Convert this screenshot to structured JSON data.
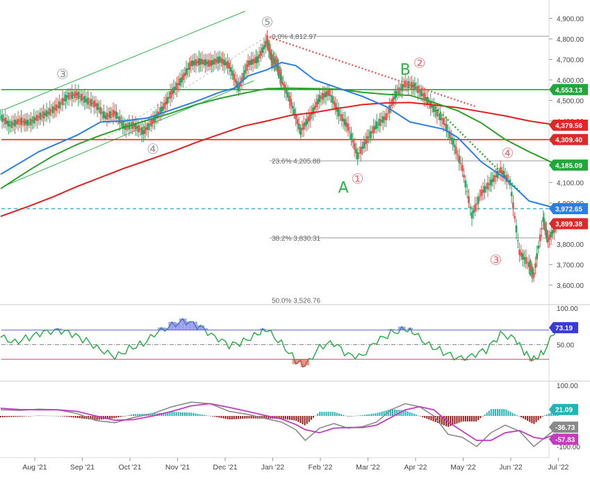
{
  "chart_data": {
    "type": "line",
    "ohlc_note": "daily candlestick price chart with moving averages, RSI and MACD panes",
    "price_axis": {
      "ticks": [
        "4,900.00",
        "4,800.00",
        "4,700.00",
        "4,600.00",
        "4,500.00",
        "4,400.00",
        "4,300.00",
        "4,200.00",
        "4,100.00",
        "4,000.00",
        "3,900.00",
        "3,800.00",
        "3,700.00",
        "3,600.00"
      ],
      "ylim": [
        3500,
        4950
      ]
    },
    "x_ticks": [
      "Aug '21",
      "Sep '21",
      "Oct '21",
      "Nov '21",
      "Dec '21",
      "Jan '22",
      "Feb '22",
      "Mar '22",
      "Apr '22",
      "May '22",
      "Jun '22",
      "Jul '22"
    ],
    "price_badges": [
      {
        "text": "4,553.13",
        "value": 4553.13,
        "color": "#1fa83a"
      },
      {
        "text": "4,379.56",
        "value": 4379.56,
        "color": "#e02828"
      },
      {
        "text": "4,309.40",
        "value": 4309.4,
        "color": "#e02828"
      },
      {
        "text": "4,185.09",
        "value": 4185.09,
        "color": "#1fa83a"
      },
      {
        "text": "3,972.65",
        "value": 3972.65,
        "color": "#2b7de9"
      },
      {
        "text": "3,899.38",
        "value": 3899.38,
        "color": "#e02828"
      }
    ],
    "fib_levels": [
      {
        "text": "0.0% 4,812.97",
        "value": 4812.97
      },
      {
        "text": "23.6% 4,205.88",
        "value": 4205.88
      },
      {
        "text": "38.2% 3,830.31",
        "value": 3830.31
      },
      {
        "text": "50.0% 3,526.76",
        "value": 3526.76
      }
    ],
    "horizontal_lines": [
      {
        "value": 4553.13,
        "color": "#1fa83a"
      },
      {
        "value": 4309.4,
        "color": "#e02828"
      },
      {
        "value": 3972.65,
        "color": "#1aa6c8",
        "style": "dashed"
      }
    ],
    "wave_labels": [
      {
        "text": "⑤",
        "color": "#999999",
        "x_month": 5.0,
        "price": 4860
      },
      {
        "text": "③",
        "color": "#999999",
        "x_month": 0.7,
        "price": 4605
      },
      {
        "text": "④",
        "color": "#999999",
        "x_month": 2.6,
        "price": 4240
      },
      {
        "text": "②",
        "color": "#e8707e",
        "x_month": 8.2,
        "price": 4660
      },
      {
        "text": "B",
        "color": "#2cb34a",
        "x_month": 7.9,
        "price": 4625
      },
      {
        "text": "①",
        "color": "#e8707e",
        "x_month": 6.9,
        "price": 4095
      },
      {
        "text": "A",
        "color": "#2cb34a",
        "x_month": 6.6,
        "price": 4050
      },
      {
        "text": "④",
        "color": "#e8707e",
        "x_month": 10.05,
        "price": 4220
      },
      {
        "text": "③",
        "color": "#e8707e",
        "x_month": 9.8,
        "price": 3700
      }
    ],
    "series": [
      {
        "name": "",
        "color": "#2b7de9",
        "points": [
          [
            -0.6,
            4140
          ],
          [
            0.2,
            4250
          ],
          [
            1.0,
            4330
          ],
          [
            1.5,
            4395
          ],
          [
            2.0,
            4400
          ],
          [
            2.5,
            4415
          ],
          [
            3.0,
            4455
          ],
          [
            3.5,
            4495
          ],
          [
            4.0,
            4540
          ],
          [
            4.3,
            4560
          ],
          [
            4.6,
            4620
          ],
          [
            5.0,
            4650
          ],
          [
            5.3,
            4685
          ],
          [
            5.6,
            4670
          ],
          [
            6.0,
            4600
          ],
          [
            6.5,
            4560
          ],
          [
            7.0,
            4520
          ],
          [
            7.5,
            4470
          ],
          [
            8.0,
            4395
          ],
          [
            8.3,
            4380
          ],
          [
            8.7,
            4360
          ],
          [
            9.0,
            4320
          ],
          [
            9.5,
            4200
          ],
          [
            10.0,
            4120
          ],
          [
            10.5,
            4010
          ],
          [
            11.1,
            3972.65
          ]
        ]
      },
      {
        "name": "",
        "color": "#2ca02c",
        "points": [
          [
            -0.6,
            4070
          ],
          [
            0.0,
            4160
          ],
          [
            0.5,
            4230
          ],
          [
            1.0,
            4285
          ],
          [
            1.5,
            4330
          ],
          [
            2.0,
            4370
          ],
          [
            2.5,
            4405
          ],
          [
            3.0,
            4440
          ],
          [
            3.5,
            4480
          ],
          [
            4.0,
            4510
          ],
          [
            4.5,
            4535
          ],
          [
            5.0,
            4558
          ],
          [
            5.5,
            4560
          ],
          [
            6.0,
            4558
          ],
          [
            6.5,
            4555
          ],
          [
            7.0,
            4540
          ],
          [
            7.5,
            4530
          ],
          [
            8.0,
            4525
          ],
          [
            8.5,
            4490
          ],
          [
            9.0,
            4450
          ],
          [
            9.5,
            4390
          ],
          [
            10.0,
            4310
          ],
          [
            10.5,
            4250
          ],
          [
            11.1,
            4185.09
          ]
        ]
      },
      {
        "name": "",
        "color": "#e01e1e",
        "points": [
          [
            -0.6,
            3935
          ],
          [
            0.0,
            3985
          ],
          [
            0.5,
            4030
          ],
          [
            1.0,
            4080
          ],
          [
            1.5,
            4125
          ],
          [
            2.0,
            4170
          ],
          [
            2.5,
            4210
          ],
          [
            3.0,
            4250
          ],
          [
            3.5,
            4295
          ],
          [
            4.0,
            4335
          ],
          [
            4.5,
            4375
          ],
          [
            5.0,
            4400
          ],
          [
            5.5,
            4428
          ],
          [
            6.0,
            4442
          ],
          [
            6.5,
            4462
          ],
          [
            7.0,
            4480
          ],
          [
            7.5,
            4488
          ],
          [
            8.0,
            4490
          ],
          [
            8.5,
            4478
          ],
          [
            9.0,
            4465
          ],
          [
            9.5,
            4445
          ],
          [
            10.0,
            4425
          ],
          [
            10.5,
            4400
          ],
          [
            11.1,
            4379.56
          ]
        ]
      },
      {
        "name": "",
        "color": "#7f7f7f",
        "points": [
          [
            -0.6,
            4420
          ],
          [
            -0.4,
            4380
          ],
          [
            -0.2,
            4400
          ],
          [
            0.0,
            4390
          ],
          [
            0.2,
            4420
          ],
          [
            0.4,
            4440
          ],
          [
            0.6,
            4470
          ],
          [
            0.8,
            4520
          ],
          [
            1.0,
            4530
          ],
          [
            1.2,
            4500
          ],
          [
            1.4,
            4480
          ],
          [
            1.6,
            4420
          ],
          [
            1.8,
            4440
          ],
          [
            2.0,
            4370
          ],
          [
            2.2,
            4380
          ],
          [
            2.4,
            4345
          ],
          [
            2.6,
            4400
          ],
          [
            2.8,
            4460
          ],
          [
            3.0,
            4540
          ],
          [
            3.2,
            4600
          ],
          [
            3.4,
            4680
          ],
          [
            3.6,
            4690
          ],
          [
            3.8,
            4680
          ],
          [
            4.0,
            4700
          ],
          [
            4.2,
            4670
          ],
          [
            4.4,
            4560
          ],
          [
            4.6,
            4680
          ],
          [
            4.8,
            4700
          ],
          [
            5.0,
            4790
          ],
          [
            5.1,
            4700
          ],
          [
            5.2,
            4680
          ],
          [
            5.3,
            4600
          ],
          [
            5.5,
            4490
          ],
          [
            5.7,
            4350
          ],
          [
            5.9,
            4420
          ],
          [
            6.1,
            4510
          ],
          [
            6.3,
            4540
          ],
          [
            6.5,
            4440
          ],
          [
            6.7,
            4370
          ],
          [
            6.9,
            4230
          ],
          [
            7.1,
            4310
          ],
          [
            7.3,
            4380
          ],
          [
            7.5,
            4420
          ],
          [
            7.7,
            4530
          ],
          [
            7.9,
            4580
          ],
          [
            8.1,
            4570
          ],
          [
            8.3,
            4520
          ],
          [
            8.5,
            4460
          ],
          [
            8.7,
            4400
          ],
          [
            8.9,
            4300
          ],
          [
            9.1,
            4170
          ],
          [
            9.3,
            3940
          ],
          [
            9.5,
            4050
          ],
          [
            9.7,
            4100
          ],
          [
            9.9,
            4160
          ],
          [
            10.1,
            4100
          ],
          [
            10.3,
            3760
          ],
          [
            10.5,
            3700
          ],
          [
            10.6,
            3650
          ],
          [
            10.8,
            3920
          ],
          [
            10.9,
            3820
          ],
          [
            11.1,
            3899.38
          ]
        ]
      }
    ],
    "rsi": {
      "ticks": [
        "100.00",
        "50.00"
      ],
      "value": "73.19",
      "upper": 70,
      "lower": 30,
      "ylim": [
        0,
        100
      ],
      "points": [
        [
          -0.6,
          60
        ],
        [
          -0.3,
          54
        ],
        [
          0,
          60
        ],
        [
          0.3,
          66
        ],
        [
          0.6,
          71
        ],
        [
          0.9,
          64
        ],
        [
          1.2,
          55
        ],
        [
          1.5,
          44
        ],
        [
          1.8,
          32
        ],
        [
          2.1,
          45
        ],
        [
          2.4,
          52
        ],
        [
          2.7,
          66
        ],
        [
          3.0,
          78
        ],
        [
          3.3,
          82
        ],
        [
          3.6,
          73
        ],
        [
          3.9,
          62
        ],
        [
          4.2,
          48
        ],
        [
          4.5,
          54
        ],
        [
          4.8,
          66
        ],
        [
          5.0,
          69
        ],
        [
          5.3,
          52
        ],
        [
          5.6,
          28
        ],
        [
          5.8,
          20
        ],
        [
          6.1,
          48
        ],
        [
          6.4,
          52
        ],
        [
          6.7,
          35
        ],
        [
          7.0,
          36
        ],
        [
          7.3,
          54
        ],
        [
          7.6,
          66
        ],
        [
          7.9,
          72
        ],
        [
          8.1,
          64
        ],
        [
          8.4,
          50
        ],
        [
          8.7,
          40
        ],
        [
          9.0,
          30
        ],
        [
          9.3,
          36
        ],
        [
          9.6,
          42
        ],
        [
          9.9,
          64
        ],
        [
          10.2,
          60
        ],
        [
          10.4,
          38
        ],
        [
          10.6,
          30
        ],
        [
          10.8,
          40
        ],
        [
          11.1,
          73.19
        ]
      ]
    },
    "macd": {
      "ticks": [
        "100.00",
        "-100.00"
      ],
      "values": [
        "21.09",
        "-36.73",
        "-57.83"
      ],
      "ylim": [
        -130,
        120
      ],
      "line": [
        [
          -0.6,
          20
        ],
        [
          -0.2,
          18
        ],
        [
          0.2,
          22
        ],
        [
          0.6,
          20
        ],
        [
          1.0,
          8
        ],
        [
          1.4,
          -15
        ],
        [
          1.8,
          -22
        ],
        [
          2.2,
          -5
        ],
        [
          2.6,
          8
        ],
        [
          3.0,
          30
        ],
        [
          3.4,
          45
        ],
        [
          3.8,
          40
        ],
        [
          4.2,
          15
        ],
        [
          4.6,
          5
        ],
        [
          5.0,
          -10
        ],
        [
          5.3,
          -20
        ],
        [
          5.6,
          -45
        ],
        [
          5.8,
          -80
        ],
        [
          6.1,
          -40
        ],
        [
          6.4,
          -25
        ],
        [
          6.7,
          -40
        ],
        [
          7.0,
          -35
        ],
        [
          7.3,
          -20
        ],
        [
          7.6,
          20
        ],
        [
          7.9,
          40
        ],
        [
          8.2,
          30
        ],
        [
          8.5,
          0
        ],
        [
          8.8,
          -60
        ],
        [
          9.1,
          -70
        ],
        [
          9.4,
          -100
        ],
        [
          9.7,
          -55
        ],
        [
          10.0,
          -30
        ],
        [
          10.3,
          -50
        ],
        [
          10.6,
          -100
        ],
        [
          10.8,
          -75
        ],
        [
          11.1,
          -36.73
        ]
      ],
      "signal": [
        [
          -0.6,
          25
        ],
        [
          -0.2,
          21
        ],
        [
          0.2,
          20
        ],
        [
          0.6,
          20
        ],
        [
          1.0,
          15
        ],
        [
          1.4,
          0
        ],
        [
          1.8,
          -14
        ],
        [
          2.2,
          -12
        ],
        [
          2.6,
          0
        ],
        [
          3.0,
          15
        ],
        [
          3.4,
          33
        ],
        [
          3.8,
          40
        ],
        [
          4.2,
          28
        ],
        [
          4.6,
          14
        ],
        [
          5.0,
          0
        ],
        [
          5.3,
          -10
        ],
        [
          5.6,
          -28
        ],
        [
          5.8,
          -45
        ],
        [
          6.1,
          -55
        ],
        [
          6.4,
          -40
        ],
        [
          6.7,
          -38
        ],
        [
          7.0,
          -38
        ],
        [
          7.3,
          -30
        ],
        [
          7.6,
          -5
        ],
        [
          7.9,
          20
        ],
        [
          8.2,
          30
        ],
        [
          8.5,
          20
        ],
        [
          8.8,
          -20
        ],
        [
          9.1,
          -50
        ],
        [
          9.4,
          -80
        ],
        [
          9.7,
          -80
        ],
        [
          10.0,
          -55
        ],
        [
          10.3,
          -48
        ],
        [
          10.6,
          -70
        ],
        [
          10.8,
          -75
        ],
        [
          11.1,
          -57.83
        ]
      ]
    }
  }
}
